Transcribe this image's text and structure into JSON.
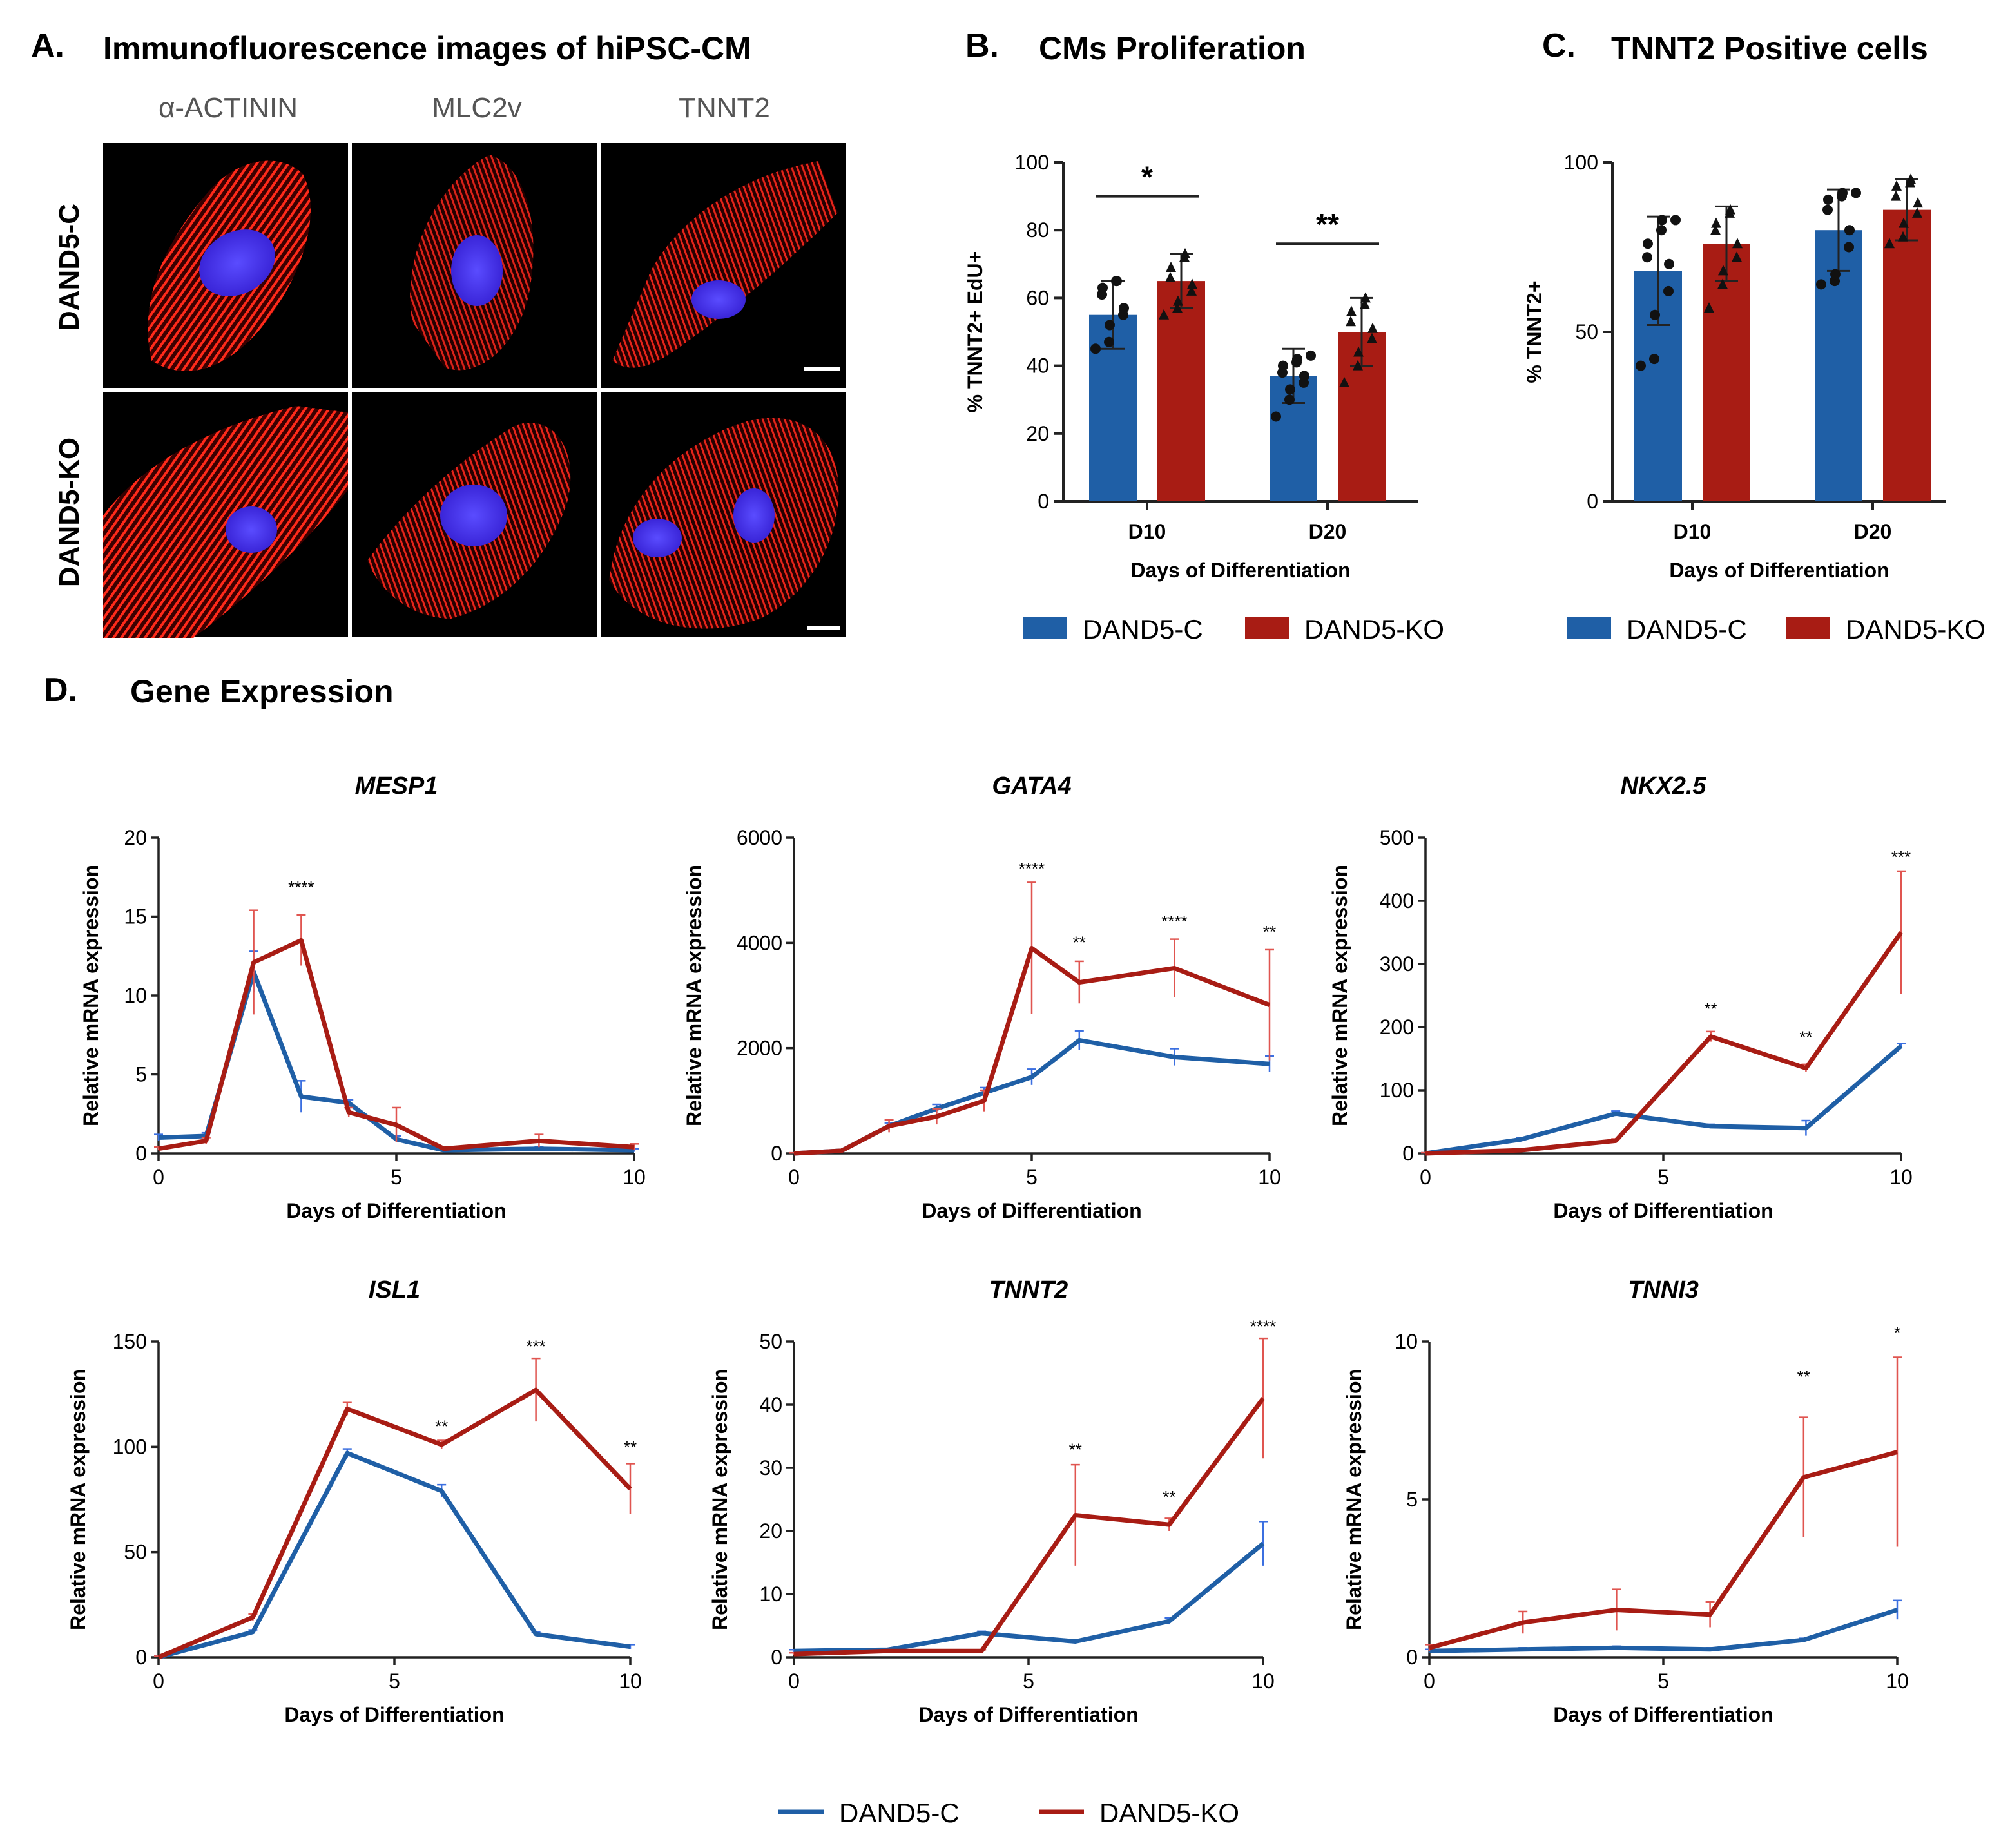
{
  "colors": {
    "control": "#1f5fa6",
    "ko": "#a81c14",
    "control_err": "#3b6fe0",
    "ko_err": "#e05550"
  },
  "panelA": {
    "letter": "A.",
    "title": "Immunofluorescence images of hiPSC-CM",
    "columns": [
      "α-ACTININ",
      "MLC2v",
      "TNNT2"
    ],
    "rows": [
      "DAND5-C",
      "DAND5-KO"
    ]
  },
  "panelB": {
    "letter": "B.",
    "title": "CMs Proliferation"
  },
  "panelC": {
    "letter": "C.",
    "title": "TNNT2 Positive cells"
  },
  "panelD": {
    "letter": "D.",
    "title": "Gene Expression"
  },
  "legend_bar": {
    "control": "DAND5-C",
    "ko": "DAND5-KO"
  },
  "legend_line": {
    "control": "DAND5-C",
    "ko": "DAND5-KO"
  },
  "chart_data": [
    {
      "id": "B",
      "type": "bar",
      "title": "CMs Proliferation",
      "xlabel": "Days of Differentiation",
      "ylabel": "% TNNT2+ EdU+",
      "ylim": [
        0,
        100
      ],
      "yticks": [
        0,
        20,
        40,
        60,
        80,
        100
      ],
      "categories": [
        "D10",
        "D20"
      ],
      "series": [
        {
          "name": "DAND5-C",
          "values": [
            55,
            37
          ],
          "error": [
            10,
            8
          ],
          "points": [
            [
              45,
              47,
              52,
              55,
              57,
              61,
              63,
              65,
              65
            ],
            [
              25,
              30,
              33,
              35,
              37,
              38,
              40,
              41,
              42,
              43
            ]
          ]
        },
        {
          "name": "DAND5-KO",
          "values": [
            65,
            50
          ],
          "error": [
            8,
            10
          ],
          "points": [
            [
              55,
              57,
              59,
              62,
              64,
              66,
              69,
              72,
              73
            ],
            [
              35,
              40,
              44,
              48,
              51,
              53,
              56,
              58,
              60
            ]
          ]
        }
      ],
      "significance": [
        {
          "category": "D10",
          "label": "*",
          "value": 90
        },
        {
          "category": "D20",
          "label": "**",
          "value": 76
        }
      ]
    },
    {
      "id": "C",
      "type": "bar",
      "title": "TNNT2 Positive cells",
      "xlabel": "Days of Differentiation",
      "ylabel": "% TNNT2+",
      "ylim": [
        0,
        100
      ],
      "yticks": [
        0,
        50,
        100
      ],
      "categories": [
        "D10",
        "D20"
      ],
      "series": [
        {
          "name": "DAND5-C",
          "values": [
            68,
            80
          ],
          "error": [
            16,
            12
          ],
          "points": [
            [
              40,
              42,
              55,
              62,
              70,
              72,
              76,
              80,
              83,
              83
            ],
            [
              64,
              65,
              67,
              75,
              80,
              86,
              89,
              90,
              91,
              91
            ]
          ]
        },
        {
          "name": "DAND5-KO",
          "values": [
            76,
            86
          ],
          "error": [
            11,
            9
          ],
          "points": [
            [
              57,
              64,
              68,
              72,
              76,
              80,
              82,
              85,
              86
            ],
            [
              76,
              78,
              82,
              85,
              88,
              90,
              93,
              94,
              95
            ]
          ]
        }
      ]
    },
    {
      "id": "MESP1",
      "type": "line",
      "title": "MESP1",
      "xlabel": "Days of Differentiation",
      "ylabel": "Relative mRNA expression",
      "xlim": [
        0,
        10
      ],
      "xticks": [
        0,
        5,
        10
      ],
      "ylim": [
        0,
        20
      ],
      "yticks": [
        0,
        5,
        10,
        15,
        20
      ],
      "series": [
        {
          "name": "DAND5-C",
          "x": [
            0,
            1,
            2,
            3,
            4,
            5,
            6,
            8,
            10
          ],
          "y": [
            1.0,
            1.1,
            11.5,
            3.6,
            3.2,
            0.9,
            0.2,
            0.3,
            0.2
          ],
          "err": [
            0.2,
            0.2,
            1.3,
            1.0,
            0.2,
            0.2,
            0.1,
            0.1,
            0.1
          ]
        },
        {
          "name": "DAND5-KO",
          "x": [
            0,
            1,
            2,
            3,
            4,
            5,
            6,
            8,
            10
          ],
          "y": [
            0.3,
            0.8,
            12.1,
            13.5,
            2.6,
            1.8,
            0.3,
            0.8,
            0.4
          ],
          "err": [
            0.1,
            0.2,
            3.3,
            1.6,
            0.3,
            1.1,
            0.1,
            0.4,
            0.2
          ]
        }
      ],
      "annotations": [
        {
          "x": 3,
          "y": 16.5,
          "label": "****"
        }
      ]
    },
    {
      "id": "GATA4",
      "type": "line",
      "title": "GATA4",
      "xlabel": "Days of Differentiation",
      "ylabel": "Relative mRNA expression",
      "xlim": [
        0,
        10
      ],
      "xticks": [
        0,
        5,
        10
      ],
      "ylim": [
        0,
        6000
      ],
      "yticks": [
        0,
        2000,
        4000,
        6000
      ],
      "series": [
        {
          "name": "DAND5-C",
          "x": [
            0,
            1,
            2,
            3,
            4,
            5,
            6,
            8,
            10
          ],
          "y": [
            0,
            50,
            520,
            850,
            1150,
            1450,
            2150,
            1830,
            1700
          ],
          "err": [
            10,
            20,
            60,
            80,
            100,
            150,
            180,
            160,
            150
          ]
        },
        {
          "name": "DAND5-KO",
          "x": [
            0,
            1,
            2,
            3,
            4,
            5,
            6,
            8,
            10
          ],
          "y": [
            0,
            50,
            520,
            700,
            1000,
            3900,
            3250,
            3520,
            2820
          ],
          "err": [
            10,
            20,
            120,
            150,
            200,
            1250,
            400,
            550,
            1050
          ]
        }
      ],
      "annotations": [
        {
          "x": 5,
          "y": 5300,
          "label": "****"
        },
        {
          "x": 6,
          "y": 3900,
          "label": "**"
        },
        {
          "x": 8,
          "y": 4300,
          "label": "****"
        },
        {
          "x": 10,
          "y": 4100,
          "label": "**"
        }
      ]
    },
    {
      "id": "NKX25",
      "type": "line",
      "title": "NKX2.5",
      "xlabel": "Days of Differentiation",
      "ylabel": "Relative mRNA expression",
      "xlim": [
        0,
        10
      ],
      "xticks": [
        0,
        5,
        10
      ],
      "ylim": [
        0,
        500
      ],
      "yticks": [
        0,
        100,
        200,
        300,
        400,
        500
      ],
      "series": [
        {
          "name": "DAND5-C",
          "x": [
            0,
            2,
            4,
            6,
            8,
            10
          ],
          "y": [
            0,
            22,
            63,
            43,
            40,
            170
          ],
          "err": [
            1,
            3,
            4,
            3,
            12,
            4
          ]
        },
        {
          "name": "DAND5-KO",
          "x": [
            0,
            2,
            4,
            6,
            8,
            10
          ],
          "y": [
            0,
            5,
            20,
            185,
            135,
            350
          ],
          "err": [
            1,
            2,
            3,
            8,
            6,
            97
          ]
        }
      ],
      "annotations": [
        {
          "x": 6,
          "y": 220,
          "label": "**"
        },
        {
          "x": 8,
          "y": 175,
          "label": "**"
        },
        {
          "x": 10,
          "y": 460,
          "label": "***"
        }
      ]
    },
    {
      "id": "ISL1",
      "type": "line",
      "title": "ISL1",
      "xlabel": "Days of Differentiation",
      "ylabel": "Relative mRNA expression",
      "xlim": [
        0,
        10
      ],
      "xticks": [
        0,
        5,
        10
      ],
      "ylim": [
        0,
        150
      ],
      "yticks": [
        0,
        50,
        100,
        150
      ],
      "series": [
        {
          "name": "DAND5-C",
          "x": [
            0,
            2,
            4,
            6,
            8,
            10
          ],
          "y": [
            0,
            12,
            97,
            79,
            11,
            5
          ],
          "err": [
            0.5,
            1,
            2,
            3,
            1,
            1
          ]
        },
        {
          "name": "DAND5-KO",
          "x": [
            0,
            2,
            4,
            6,
            8,
            10
          ],
          "y": [
            0,
            19,
            118,
            101,
            127,
            80
          ],
          "err": [
            0.5,
            1.5,
            3,
            2,
            15,
            12
          ]
        }
      ],
      "annotations": [
        {
          "x": 6,
          "y": 107,
          "label": "**"
        },
        {
          "x": 8,
          "y": 145,
          "label": "***"
        },
        {
          "x": 10,
          "y": 97,
          "label": "**"
        }
      ]
    },
    {
      "id": "TNNT2",
      "type": "line",
      "title": "TNNT2",
      "xlabel": "Days of Differentiation",
      "ylabel": "Relative mRNA expression",
      "xlim": [
        0,
        10
      ],
      "xticks": [
        0,
        5,
        10
      ],
      "ylim": [
        0,
        50
      ],
      "yticks": [
        0,
        10,
        20,
        30,
        40,
        50
      ],
      "series": [
        {
          "name": "DAND5-C",
          "x": [
            0,
            2,
            4,
            6,
            8,
            10
          ],
          "y": [
            1,
            1.2,
            3.8,
            2.5,
            5.7,
            18
          ],
          "err": [
            0.2,
            0.2,
            0.3,
            0.3,
            0.5,
            3.5
          ]
        },
        {
          "name": "DAND5-KO",
          "x": [
            0,
            2,
            4,
            6,
            8,
            10
          ],
          "y": [
            0.5,
            1,
            1,
            22.5,
            21,
            41
          ],
          "err": [
            0.2,
            0.2,
            0.2,
            8,
            1,
            9.5
          ]
        }
      ],
      "annotations": [
        {
          "x": 6,
          "y": 32,
          "label": "**"
        },
        {
          "x": 8,
          "y": 24.5,
          "label": "**"
        },
        {
          "x": 10,
          "y": 51.5,
          "label": "****"
        }
      ]
    },
    {
      "id": "TNNI3",
      "type": "line",
      "title": "TNNI3",
      "xlabel": "Days of Differentiation",
      "ylabel": "Relative mRNA expression",
      "xlim": [
        0,
        10
      ],
      "xticks": [
        0,
        5,
        10
      ],
      "ylim": [
        0,
        10
      ],
      "yticks": [
        0,
        5,
        10
      ],
      "series": [
        {
          "name": "DAND5-C",
          "x": [
            0,
            2,
            4,
            6,
            8,
            10
          ],
          "y": [
            0.2,
            0.25,
            0.3,
            0.25,
            0.55,
            1.5
          ],
          "err": [
            0.05,
            0.05,
            0.05,
            0.05,
            0.05,
            0.3
          ]
        },
        {
          "name": "DAND5-KO",
          "x": [
            0,
            2,
            4,
            6,
            8,
            10
          ],
          "y": [
            0.3,
            1.1,
            1.5,
            1.35,
            5.7,
            6.5
          ],
          "err": [
            0.1,
            0.35,
            0.65,
            0.4,
            1.9,
            3.0
          ]
        }
      ],
      "annotations": [
        {
          "x": 8,
          "y": 8.7,
          "label": "**"
        },
        {
          "x": 10,
          "y": 10.1,
          "label": "*"
        }
      ]
    }
  ]
}
